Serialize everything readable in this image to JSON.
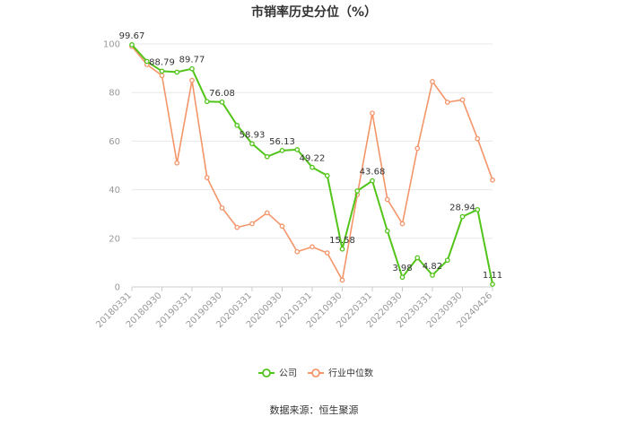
{
  "chart_data": {
    "type": "line",
    "title": "市销率历史分位（%）",
    "source": "数据来源：恒生聚源",
    "ylim": [
      0,
      100
    ],
    "yticks": [
      0,
      20,
      40,
      60,
      80,
      100
    ],
    "grid": true,
    "legend_position": "bottom",
    "x": [
      "20180331",
      "20180630",
      "20180930",
      "20181231",
      "20190331",
      "20190630",
      "20190930",
      "20191231",
      "20200331",
      "20200630",
      "20200930",
      "20201231",
      "20210331",
      "20210630",
      "20210930",
      "20211231",
      "20220331",
      "20220630",
      "20220930",
      "20221231",
      "20230331",
      "20230630",
      "20230930",
      "20231231",
      "20240426"
    ],
    "xtick_labels": [
      "20180331",
      "20180930",
      "20190331",
      "20190930",
      "20200331",
      "20200930",
      "20210331",
      "20210930",
      "20220331",
      "20220930",
      "20230331",
      "20230930",
      "20240426"
    ],
    "series": [
      {
        "name": "公司",
        "color": "#52c41a",
        "values": [
          99.67,
          92.8,
          88.79,
          88.4,
          89.77,
          76.3,
          76.08,
          66.5,
          58.93,
          53.6,
          56.13,
          56.5,
          49.22,
          45.8,
          15.58,
          39.5,
          43.68,
          23.0,
          3.98,
          12.0,
          4.82,
          11.0,
          28.94,
          31.8,
          1.11
        ],
        "labels": {
          "0": "99.67",
          "2": "88.79",
          "4": "89.77",
          "6": "76.08",
          "8": "58.93",
          "10": "56.13",
          "12": "49.22",
          "14": "15.58",
          "16": "43.68",
          "18": "3.98",
          "20": "4.82",
          "22": "28.94",
          "24": "1.11"
        }
      },
      {
        "name": "行业中位数",
        "color": "#f4956a",
        "values": [
          99.0,
          91.5,
          87.0,
          51.0,
          85.0,
          45.0,
          32.5,
          24.5,
          26.0,
          30.5,
          25.0,
          14.5,
          16.5,
          14.0,
          2.8,
          38.0,
          71.5,
          36.0,
          26.0,
          57.0,
          84.5,
          76.0,
          77.0,
          61.0,
          44.0
        ]
      }
    ]
  }
}
